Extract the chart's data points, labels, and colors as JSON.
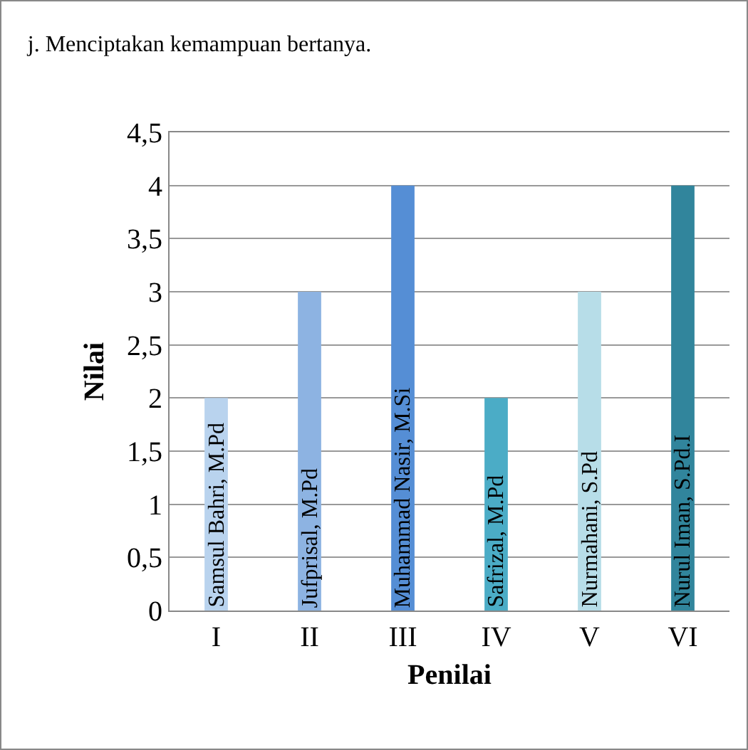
{
  "chart_data": {
    "type": "bar",
    "title": "j. Menciptakan kemampuan bertanya.",
    "xlabel": "Penilai",
    "ylabel": "Nilai",
    "categories": [
      "I",
      "II",
      "III",
      "IV",
      "V",
      "VI"
    ],
    "values": [
      2,
      3,
      4,
      2,
      3,
      4
    ],
    "colors": [
      "#b9d3ee",
      "#8db3e2",
      "#558ed5",
      "#4bacc6",
      "#b7dde8",
      "#31859c"
    ],
    "ylim": [
      0,
      4.5
    ],
    "yticks": [
      0,
      {
        "value": 0.5,
        "label": "0,5"
      },
      1,
      {
        "value": 1.5,
        "label": "1,5"
      },
      2,
      {
        "value": 2.5,
        "label": "2,5"
      },
      3,
      {
        "value": 3.5,
        "label": "3,5"
      },
      4,
      {
        "value": 4.5,
        "label": "4,5"
      }
    ],
    "grid": "y",
    "annotations": [
      {
        "text": "Samsul Bahri, M.Pd",
        "x": "I",
        "y": 0
      },
      {
        "text": "Jufprisal, M.Pd",
        "x": "II",
        "y": 0
      },
      {
        "text": "Muhammad Nasir, M.Si",
        "x": "III",
        "y": 0
      },
      {
        "text": "Safrizal, M.Pd",
        "x": "IV",
        "y": 0
      },
      {
        "text": "Nurmahani, S.Pd",
        "x": "V",
        "y": 0
      },
      {
        "text": "Nurul Iman, S.Pd.I",
        "x": "VI",
        "y": 0
      }
    ]
  }
}
